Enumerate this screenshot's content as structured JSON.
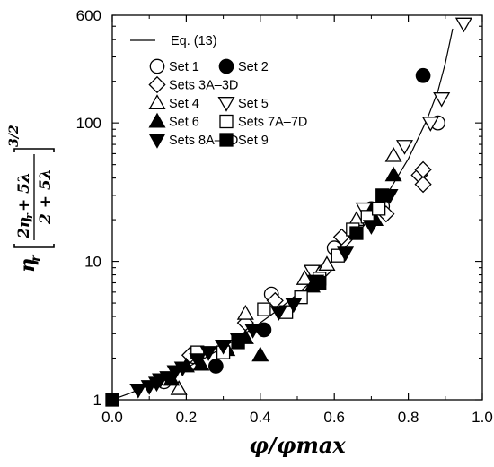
{
  "chart_data": {
    "type": "scatter",
    "title": "",
    "xlabel": "φ/φmax",
    "ylabel": {
      "eta": "η",
      "sub": "r",
      "numerator": "2η",
      "numerator_sub": "r",
      "numerator_rest": " + 5λ",
      "denominator": "2 + 5λ",
      "exponent": "3/2"
    },
    "xlim": [
      0.0,
      1.0
    ],
    "ylim": [
      1,
      600
    ],
    "yscale": "log",
    "xticks": [
      0.0,
      0.2,
      0.4,
      0.6,
      0.8,
      1.0
    ],
    "xtick_labels": [
      "0.0",
      "0.2",
      "0.4",
      "0.6",
      "0.8",
      "1.0"
    ],
    "yticks": [
      1,
      10,
      100,
      600
    ],
    "ytick_labels": [
      "1",
      "10",
      "100",
      "600"
    ],
    "grid": false,
    "legend_position": "top-left",
    "line": {
      "name": "Eq. (13)",
      "x": [
        0.0,
        0.05,
        0.1,
        0.15,
        0.2,
        0.25,
        0.3,
        0.35,
        0.4,
        0.45,
        0.5,
        0.55,
        0.6,
        0.65,
        0.7,
        0.75,
        0.8,
        0.85,
        0.88,
        0.9,
        0.92
      ],
      "y": [
        1.0,
        1.12,
        1.28,
        1.45,
        1.7,
        2.0,
        2.4,
        2.9,
        3.6,
        4.5,
        5.8,
        7.6,
        10.3,
        14.5,
        21,
        33,
        55,
        105,
        170,
        270,
        480
      ]
    },
    "series": [
      {
        "name": "Set 1",
        "marker": "circle-open",
        "points": [
          [
            0.14,
            1.35
          ],
          [
            0.22,
            2.05
          ],
          [
            0.43,
            5.8
          ],
          [
            0.6,
            12.5
          ],
          [
            0.73,
            25
          ],
          [
            0.88,
            100
          ]
        ]
      },
      {
        "name": "Set 2",
        "marker": "circle-filled",
        "points": [
          [
            0.28,
            1.75
          ],
          [
            0.41,
            3.2
          ],
          [
            0.7,
            24
          ],
          [
            0.84,
            220
          ]
        ]
      },
      {
        "name": "Sets 3A–3D",
        "marker": "diamond-open",
        "points": [
          [
            0.21,
            2.1
          ],
          [
            0.36,
            3.6
          ],
          [
            0.44,
            5.2
          ],
          [
            0.57,
            8.5
          ],
          [
            0.62,
            15
          ],
          [
            0.74,
            22
          ],
          [
            0.83,
            42
          ],
          [
            0.84,
            36
          ],
          [
            0.84,
            46
          ]
        ]
      },
      {
        "name": "Set 4",
        "marker": "triangle-up-open",
        "points": [
          [
            0.18,
            1.2
          ],
          [
            0.36,
            4.2
          ],
          [
            0.52,
            7.5
          ],
          [
            0.58,
            9.5
          ],
          [
            0.66,
            20
          ],
          [
            0.76,
            58
          ]
        ]
      },
      {
        "name": "Set 5",
        "marker": "triangle-down-open",
        "points": [
          [
            0.54,
            8.5
          ],
          [
            0.68,
            24
          ],
          [
            0.79,
            68
          ],
          [
            0.86,
            100
          ],
          [
            0.89,
            150
          ],
          [
            0.95,
            520
          ]
        ]
      },
      {
        "name": "Set 6",
        "marker": "triangle-up-filled",
        "points": [
          [
            0.16,
            1.4
          ],
          [
            0.2,
            1.75
          ],
          [
            0.24,
            1.8
          ],
          [
            0.31,
            2.3
          ],
          [
            0.36,
            2.8
          ],
          [
            0.4,
            2.1
          ],
          [
            0.54,
            6.6
          ],
          [
            0.71,
            20
          ],
          [
            0.76,
            42
          ]
        ]
      },
      {
        "name": "Sets 7A–7D",
        "marker": "square-open",
        "points": [
          [
            0.23,
            2.2
          ],
          [
            0.3,
            2.2
          ],
          [
            0.41,
            4.5
          ],
          [
            0.47,
            4.3
          ],
          [
            0.51,
            5.5
          ],
          [
            0.56,
            7.5
          ],
          [
            0.61,
            11
          ],
          [
            0.65,
            17
          ],
          [
            0.69,
            21
          ],
          [
            0.72,
            24
          ]
        ]
      },
      {
        "name": "Sets 8A–8D",
        "marker": "triangle-down-filled",
        "points": [
          [
            0.07,
            1.18
          ],
          [
            0.1,
            1.25
          ],
          [
            0.12,
            1.32
          ],
          [
            0.13,
            1.4
          ],
          [
            0.15,
            1.45
          ],
          [
            0.17,
            1.6
          ],
          [
            0.19,
            1.7
          ],
          [
            0.23,
            1.95
          ],
          [
            0.26,
            2.2
          ],
          [
            0.3,
            2.45
          ],
          [
            0.34,
            2.75
          ],
          [
            0.38,
            3.2
          ],
          [
            0.45,
            4.3
          ],
          [
            0.49,
            4.9
          ],
          [
            0.55,
            7.2
          ],
          [
            0.63,
            11.5
          ],
          [
            0.7,
            18
          ],
          [
            0.75,
            30
          ]
        ]
      },
      {
        "name": "Set 9",
        "marker": "square-filled",
        "points": [
          [
            0.0,
            1.0
          ],
          [
            0.34,
            2.6
          ],
          [
            0.56,
            7.0
          ],
          [
            0.66,
            16
          ],
          [
            0.73,
            30
          ]
        ]
      }
    ],
    "legend": {
      "line_label": "Eq. (13)",
      "rows": [
        [
          {
            "label": "Set 1",
            "marker": "circle-open"
          },
          {
            "label": "Set 2",
            "marker": "circle-filled"
          }
        ],
        [
          {
            "label": "Sets 3A–3D",
            "marker": "diamond-open"
          }
        ],
        [
          {
            "label": "Set 4",
            "marker": "triangle-up-open"
          },
          {
            "label": "Set 5",
            "marker": "triangle-down-open"
          }
        ],
        [
          {
            "label": "Set 6",
            "marker": "triangle-up-filled"
          },
          {
            "label": "Sets 7A–7D",
            "marker": "square-open"
          }
        ],
        [
          {
            "label": "Sets 8A–8D",
            "marker": "triangle-down-filled"
          },
          {
            "label": "Set 9",
            "marker": "square-filled"
          }
        ]
      ]
    }
  }
}
